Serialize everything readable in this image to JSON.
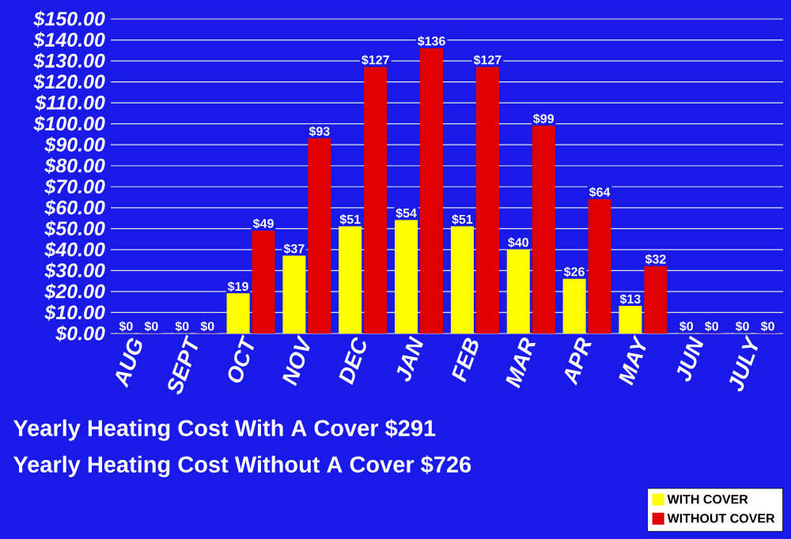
{
  "chart_data": {
    "type": "bar",
    "categories": [
      "AUG",
      "SEPT",
      "OCT",
      "NOV",
      "DEC",
      "JAN",
      "FEB",
      "MAR",
      "APR",
      "MAY",
      "JUN",
      "JULY"
    ],
    "series": [
      {
        "name": "WITH COVER",
        "color": "#ffff00",
        "values": [
          0,
          0,
          19,
          37,
          51,
          54,
          51,
          40,
          26,
          13,
          0,
          0
        ],
        "value_labels": [
          "$0",
          "$0",
          "$19",
          "$37",
          "$51",
          "$54",
          "$51",
          "$40",
          "$26",
          "$13",
          "$0",
          "$0"
        ]
      },
      {
        "name": "WITHOUT COVER",
        "color": "#e00000",
        "values": [
          0,
          0,
          49,
          93,
          127,
          136,
          127,
          99,
          64,
          32,
          0,
          0
        ],
        "value_labels": [
          "$0",
          "$0",
          "$49",
          "$93",
          "$127",
          "$136",
          "$127",
          "$99",
          "$64",
          "$32",
          "$0",
          "$0"
        ]
      }
    ],
    "ylim": [
      0,
      150
    ],
    "yticks": [
      {
        "value": 0,
        "label": "$0.00"
      },
      {
        "value": 10,
        "label": "$10.00"
      },
      {
        "value": 20,
        "label": "$20.00"
      },
      {
        "value": 30,
        "label": "$30.00"
      },
      {
        "value": 40,
        "label": "$40.00"
      },
      {
        "value": 50,
        "label": "$50.00"
      },
      {
        "value": 60,
        "label": "$60.00"
      },
      {
        "value": 70,
        "label": "$70.00"
      },
      {
        "value": 80,
        "label": "$80.00"
      },
      {
        "value": 90,
        "label": "$90.00"
      },
      {
        "value": 100,
        "label": "$100.00"
      },
      {
        "value": 110,
        "label": "$110.00"
      },
      {
        "value": 120,
        "label": "$120.00"
      },
      {
        "value": 130,
        "label": "$130.00"
      },
      {
        "value": 140,
        "label": "$140.00"
      },
      {
        "value": 150,
        "label": "$150.00"
      }
    ],
    "grid": "y",
    "legend": "bottom right",
    "annotations": [
      "Yearly Heating Cost With A Cover $291",
      "Yearly Heating Cost Without A Cover $726"
    ]
  }
}
